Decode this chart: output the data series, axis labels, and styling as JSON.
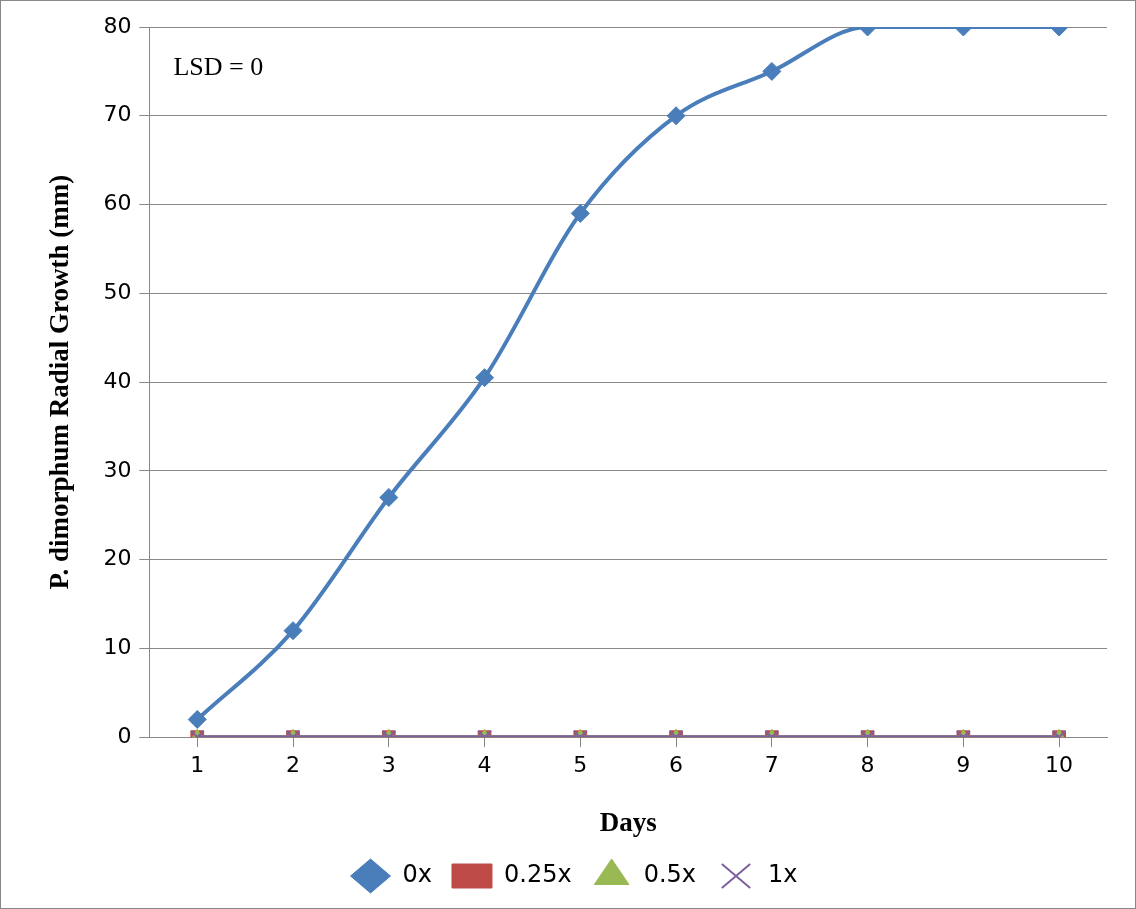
{
  "chart_data": {
    "type": "line",
    "xlabel": "Days",
    "ylabel": "P. dimorphum Radial Growth (mm)",
    "categories": [
      "1",
      "2",
      "3",
      "4",
      "5",
      "6",
      "7",
      "8",
      "9",
      "10"
    ],
    "series": [
      {
        "name": "0x",
        "color": "#4a7ebb",
        "marker": "diamond",
        "values": [
          2,
          12,
          27,
          40.5,
          59,
          70,
          75,
          80,
          80,
          80
        ]
      },
      {
        "name": "0.25x",
        "color": "#be4b48",
        "marker": "square",
        "values": [
          0,
          0,
          0,
          0,
          0,
          0,
          0,
          0,
          0,
          0
        ]
      },
      {
        "name": "0.5x",
        "color": "#98b954",
        "marker": "triangle",
        "values": [
          0,
          0,
          0,
          0,
          0,
          0,
          0,
          0,
          0,
          0
        ]
      },
      {
        "name": "1x",
        "color": "#7d60a0",
        "marker": "cross",
        "values": [
          0,
          0,
          0,
          0,
          0,
          0,
          0,
          0,
          0,
          0
        ]
      }
    ],
    "ylim": [
      0,
      80
    ],
    "yticks": [
      0,
      10,
      20,
      30,
      40,
      50,
      60,
      70,
      80
    ],
    "grid": "y",
    "legend": "bottom",
    "line_style": "solid",
    "annotations": [
      "LSD = 0"
    ]
  }
}
